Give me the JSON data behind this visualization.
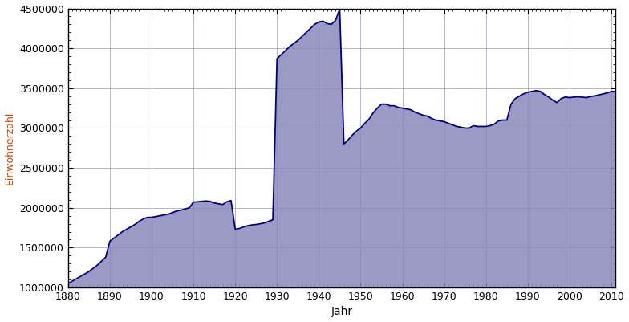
{
  "title": "",
  "xlabel": "Jahr",
  "ylabel": "Einwohnerzahl",
  "xlim": [
    1880,
    2011
  ],
  "ylim": [
    1000000,
    4500000
  ],
  "xticks": [
    1880,
    1890,
    1900,
    1910,
    1920,
    1930,
    1940,
    1950,
    1960,
    1970,
    1980,
    1990,
    2000,
    2010
  ],
  "yticks": [
    1000000,
    1500000,
    2000000,
    2500000,
    3000000,
    3500000,
    4000000,
    4500000
  ],
  "fill_color": "#8888bb",
  "line_color": "#000080",
  "line_width": 1.3,
  "background_color": "#ffffff",
  "grid_color": "#aaaacc",
  "years": [
    1880,
    1881,
    1882,
    1883,
    1884,
    1885,
    1886,
    1887,
    1888,
    1889,
    1890,
    1891,
    1892,
    1893,
    1894,
    1895,
    1896,
    1897,
    1898,
    1899,
    1900,
    1901,
    1902,
    1903,
    1904,
    1905,
    1906,
    1907,
    1908,
    1909,
    1910,
    1911,
    1912,
    1913,
    1914,
    1915,
    1916,
    1917,
    1918,
    1919,
    1920,
    1921,
    1922,
    1923,
    1924,
    1925,
    1926,
    1927,
    1928,
    1929,
    1930,
    1931,
    1932,
    1933,
    1934,
    1935,
    1936,
    1937,
    1938,
    1939,
    1940,
    1941,
    1942,
    1943,
    1944,
    1945,
    1946,
    1947,
    1948,
    1949,
    1950,
    1951,
    1952,
    1953,
    1954,
    1955,
    1956,
    1957,
    1958,
    1959,
    1960,
    1961,
    1962,
    1963,
    1964,
    1965,
    1966,
    1967,
    1968,
    1969,
    1970,
    1971,
    1972,
    1973,
    1974,
    1975,
    1976,
    1977,
    1978,
    1979,
    1980,
    1981,
    1982,
    1983,
    1984,
    1985,
    1986,
    1987,
    1988,
    1989,
    1990,
    1991,
    1992,
    1993,
    1994,
    1995,
    1996,
    1997,
    1998,
    1999,
    2000,
    2001,
    2002,
    2003,
    2004,
    2005,
    2006,
    2007,
    2008,
    2009,
    2010,
    2011
  ],
  "population": [
    1050000,
    1080000,
    1110000,
    1140000,
    1170000,
    1200000,
    1240000,
    1280000,
    1330000,
    1380000,
    1580000,
    1620000,
    1660000,
    1700000,
    1730000,
    1760000,
    1790000,
    1830000,
    1860000,
    1880000,
    1880000,
    1890000,
    1900000,
    1910000,
    1920000,
    1940000,
    1960000,
    1970000,
    1985000,
    2000000,
    2070000,
    2075000,
    2080000,
    2085000,
    2080000,
    2060000,
    2050000,
    2040000,
    2075000,
    2090000,
    1730000,
    1740000,
    1760000,
    1775000,
    1785000,
    1790000,
    1800000,
    1810000,
    1830000,
    1850000,
    3870000,
    3920000,
    3970000,
    4020000,
    4060000,
    4100000,
    4150000,
    4200000,
    4250000,
    4300000,
    4330000,
    4340000,
    4310000,
    4300000,
    4350000,
    4490000,
    2800000,
    2850000,
    2910000,
    2960000,
    3000000,
    3060000,
    3110000,
    3190000,
    3250000,
    3300000,
    3300000,
    3280000,
    3280000,
    3260000,
    3250000,
    3240000,
    3230000,
    3200000,
    3180000,
    3160000,
    3150000,
    3120000,
    3100000,
    3090000,
    3080000,
    3060000,
    3040000,
    3020000,
    3010000,
    3000000,
    3000000,
    3030000,
    3020000,
    3020000,
    3020000,
    3030000,
    3050000,
    3090000,
    3100000,
    3100000,
    3300000,
    3370000,
    3400000,
    3430000,
    3450000,
    3460000,
    3470000,
    3460000,
    3420000,
    3390000,
    3350000,
    3320000,
    3370000,
    3390000,
    3382000,
    3388000,
    3391000,
    3388000,
    3382000,
    3395000,
    3404000,
    3416000,
    3428000,
    3440000,
    3460000,
    3460000
  ]
}
